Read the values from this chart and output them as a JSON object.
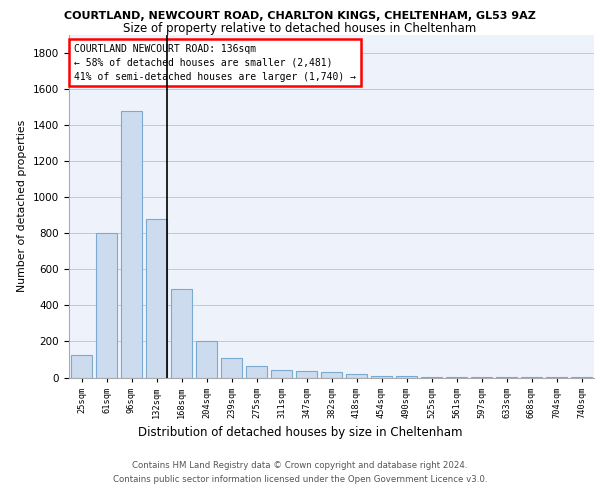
{
  "title1": "COURTLAND, NEWCOURT ROAD, CHARLTON KINGS, CHELTENHAM, GL53 9AZ",
  "title2": "Size of property relative to detached houses in Cheltenham",
  "xlabel": "Distribution of detached houses by size in Cheltenham",
  "ylabel": "Number of detached properties",
  "categories": [
    "25sqm",
    "61sqm",
    "96sqm",
    "132sqm",
    "168sqm",
    "204sqm",
    "239sqm",
    "275sqm",
    "311sqm",
    "347sqm",
    "382sqm",
    "418sqm",
    "454sqm",
    "490sqm",
    "525sqm",
    "561sqm",
    "597sqm",
    "633sqm",
    "668sqm",
    "704sqm",
    "740sqm"
  ],
  "values": [
    125,
    800,
    1480,
    880,
    490,
    205,
    108,
    65,
    42,
    35,
    28,
    20,
    10,
    8,
    5,
    3,
    2,
    2,
    2,
    2,
    2
  ],
  "bar_color": "#ccdcee",
  "bar_edge_color": "#7aaad0",
  "annotation_line1": "COURTLAND NEWCOURT ROAD: 136sqm",
  "annotation_line2": "← 58% of detached houses are smaller (2,481)",
  "annotation_line3": "41% of semi-detached houses are larger (1,740) →",
  "property_bar_index": 3,
  "ylim": [
    0,
    1900
  ],
  "yticks": [
    0,
    200,
    400,
    600,
    800,
    1000,
    1200,
    1400,
    1600,
    1800
  ],
  "footer": "Contains HM Land Registry data © Crown copyright and database right 2024.\nContains public sector information licensed under the Open Government Licence v3.0.",
  "background_color": "#eef2fb",
  "grid_color": "#c8c8c8",
  "title1_fontsize": 8.0,
  "title2_fontsize": 8.5
}
